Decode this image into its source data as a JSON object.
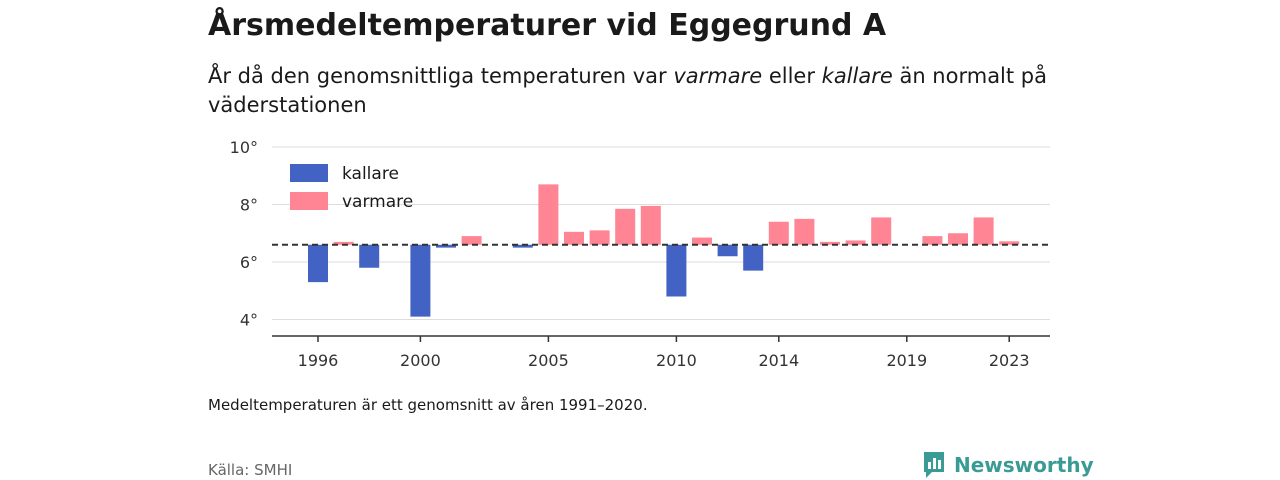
{
  "title": "Årsmedeltemperaturer vid Eggegrund A",
  "subtitle": {
    "part1": "År då den genomsnittliga temperaturen var ",
    "warm_word": "varmare",
    "part2": " eller ",
    "cold_word": "kallare",
    "part3": " än normalt på väderstationen"
  },
  "note": "Medeltemperaturen är ett genomsnitt av åren 1991–2020.",
  "source": "Källa: SMHI",
  "brand": "Newsworthy",
  "colors": {
    "cold": "#4263c4",
    "warm": "#ff8494",
    "grid": "#dddddd",
    "axis": "#333333",
    "brand": "#3a9a94"
  },
  "chart_data": {
    "type": "bar",
    "baseline": 6.6,
    "ylim": [
      3.5,
      10
    ],
    "yticks": [
      4,
      6,
      8,
      10
    ],
    "ytick_labels": [
      "4°",
      "6°",
      "8°",
      "10°"
    ],
    "xticks": [
      1996,
      2000,
      2005,
      2010,
      2014,
      2019,
      2023
    ],
    "legend": [
      {
        "key": "cold",
        "label": "kallare"
      },
      {
        "key": "warm",
        "label": "varmare"
      }
    ],
    "legend_position": "top-left",
    "grid": true,
    "categories": [
      1996,
      1997,
      1998,
      1999,
      2000,
      2001,
      2002,
      2003,
      2004,
      2005,
      2006,
      2007,
      2008,
      2009,
      2010,
      2011,
      2012,
      2013,
      2014,
      2015,
      2016,
      2017,
      2018,
      2019,
      2020,
      2021,
      2022,
      2023
    ],
    "values": [
      5.3,
      6.7,
      5.8,
      null,
      4.1,
      6.5,
      6.9,
      null,
      6.5,
      8.7,
      7.05,
      7.1,
      7.85,
      7.95,
      4.8,
      6.85,
      6.2,
      5.7,
      7.4,
      7.5,
      6.7,
      6.75,
      7.55,
      null,
      6.9,
      7.0,
      7.55,
      6.72
    ]
  }
}
